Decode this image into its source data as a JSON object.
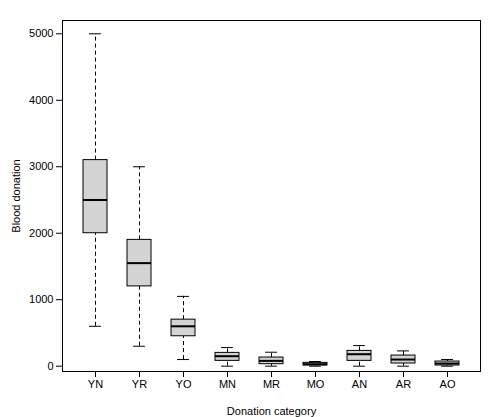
{
  "chart_data": {
    "type": "box",
    "categories": [
      "YN",
      "YR",
      "YO",
      "MN",
      "MR",
      "MO",
      "AN",
      "AR",
      "AO"
    ],
    "whislo": [
      600,
      300,
      100,
      0,
      0,
      0,
      0,
      0,
      0
    ],
    "q1": [
      2000,
      1200,
      450,
      80,
      30,
      10,
      80,
      40,
      10
    ],
    "med": [
      2500,
      1550,
      600,
      150,
      80,
      30,
      180,
      100,
      40
    ],
    "q3": [
      3100,
      1900,
      700,
      200,
      130,
      50,
      230,
      160,
      70
    ],
    "whishi": [
      5000,
      3000,
      1050,
      280,
      210,
      70,
      310,
      230,
      100
    ],
    "ylim": [
      -80,
      5200
    ],
    "yticks": [
      0,
      1000,
      2000,
      3000,
      4000,
      5000
    ],
    "ylabel": "Blood donation",
    "xlabel": "Donation category",
    "color": "#d3d3d3",
    "grid": false
  }
}
